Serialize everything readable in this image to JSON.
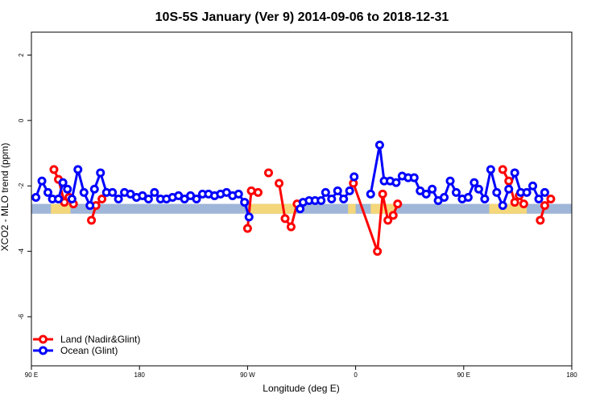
{
  "chart_data": {
    "type": "line",
    "title": "10S-5S January (Ver 9)   2014-09-06 to 2018-12-31",
    "xlabel": "Longitude (deg E)",
    "ylabel": "XCO2 - MLO trend (ppm)",
    "xlim": [
      90,
      450
    ],
    "ylim": [
      -7.5,
      2.7
    ],
    "x_ticks": [
      {
        "value": 90,
        "label": "90 E"
      },
      {
        "value": 162,
        "label": "180"
      },
      {
        "value": 234,
        "label": "90 W"
      },
      {
        "value": 306,
        "label": "0"
      },
      {
        "value": 378,
        "label": "90 E"
      },
      {
        "value": 450,
        "label": "180"
      }
    ],
    "y_ticks": [
      {
        "value": 2,
        "label": "2"
      },
      {
        "value": 0,
        "label": "0"
      },
      {
        "value": -2,
        "label": "-2"
      },
      {
        "value": -4,
        "label": "-4"
      },
      {
        "value": -6,
        "label": "-6"
      }
    ],
    "grid": false,
    "legend_position": "bottom-left",
    "band": {
      "y_low": -2.85,
      "y_high": -2.55,
      "color": "#9fb6d8"
    },
    "land_mask": {
      "color": "#f4d77a",
      "y_low": -2.85,
      "y_high": -2.55,
      "segments": [
        [
          103,
          116
        ],
        [
          236,
          266
        ],
        [
          301,
          306
        ],
        [
          316,
          332
        ],
        [
          395,
          420
        ]
      ]
    },
    "series": [
      {
        "name": "Land (Nadir&Glint)",
        "color": "#ff0000",
        "segments": [
          [
            [
              105,
              -1.5
            ],
            [
              108,
              -1.8
            ],
            [
              112,
              -2.5
            ],
            [
              115,
              -2.35
            ],
            [
              118,
              -2.55
            ]
          ],
          [
            [
              130,
              -3.05
            ],
            [
              133,
              -2.6
            ],
            [
              137,
              -2.4
            ]
          ],
          [
            [
              234,
              -3.3
            ],
            [
              236.5,
              -2.15
            ],
            [
              241,
              -2.2
            ]
          ],
          [
            [
              248,
              -1.6
            ]
          ],
          [
            [
              255,
              -1.92
            ],
            [
              259,
              -3.0
            ],
            [
              263,
              -3.25
            ],
            [
              267,
              -2.55
            ]
          ],
          [
            [
              304.5,
              -1.92
            ],
            [
              320.5,
              -4.0
            ],
            [
              324,
              -2.25
            ],
            [
              327.5,
              -3.05
            ],
            [
              331,
              -2.9
            ],
            [
              334,
              -2.55
            ]
          ],
          [
            [
              404,
              -1.5
            ],
            [
              408,
              -1.85
            ],
            [
              412,
              -2.5
            ],
            [
              415,
              -2.3
            ],
            [
              418,
              -2.55
            ]
          ],
          [
            [
              429,
              -3.05
            ],
            [
              432,
              -2.6
            ],
            [
              436,
              -2.4
            ]
          ]
        ]
      },
      {
        "name": "Ocean (Glint)",
        "color": "#0000ff",
        "points": [
          [
            93,
            -2.35
          ],
          [
            97,
            -1.85
          ],
          [
            101,
            -2.2
          ],
          [
            104,
            -2.4
          ],
          [
            108,
            -2.4
          ],
          [
            111,
            -1.9
          ],
          [
            114,
            -2.1
          ],
          [
            117,
            -2.4
          ],
          [
            121,
            -1.5
          ],
          [
            125,
            -2.2
          ],
          [
            129,
            -2.6
          ],
          [
            132,
            -2.1
          ],
          [
            136,
            -1.6
          ],
          [
            140,
            -2.2
          ],
          [
            144,
            -2.2
          ],
          [
            148,
            -2.4
          ],
          [
            152,
            -2.2
          ],
          [
            156,
            -2.25
          ],
          [
            160,
            -2.35
          ],
          [
            164,
            -2.3
          ],
          [
            168,
            -2.4
          ],
          [
            172,
            -2.2
          ],
          [
            176,
            -2.4
          ],
          [
            180,
            -2.4
          ],
          [
            184,
            -2.35
          ],
          [
            188,
            -2.3
          ],
          [
            192,
            -2.4
          ],
          [
            196,
            -2.3
          ],
          [
            200,
            -2.4
          ],
          [
            204,
            -2.25
          ],
          [
            208,
            -2.25
          ],
          [
            212,
            -2.3
          ],
          [
            216,
            -2.25
          ],
          [
            220,
            -2.2
          ],
          [
            224,
            -2.3
          ],
          [
            228,
            -2.25
          ],
          [
            232,
            -2.5
          ],
          [
            235,
            -2.95
          ],
          null,
          [
            269,
            -2.7
          ],
          [
            271,
            -2.5
          ],
          [
            275,
            -2.45
          ],
          [
            279,
            -2.45
          ],
          [
            283,
            -2.45
          ],
          [
            286,
            -2.2
          ],
          [
            290,
            -2.4
          ],
          [
            294,
            -2.15
          ],
          [
            298,
            -2.4
          ],
          [
            302,
            -2.15
          ],
          [
            305,
            -1.72
          ],
          null,
          [
            316,
            -2.25
          ],
          [
            322,
            -0.75
          ],
          [
            325,
            -1.85
          ],
          [
            329,
            -1.85
          ],
          [
            333,
            -1.9
          ],
          [
            337,
            -1.7
          ],
          [
            341,
            -1.75
          ],
          [
            345,
            -1.75
          ],
          [
            349,
            -2.15
          ],
          [
            353,
            -2.25
          ],
          [
            357,
            -2.1
          ],
          [
            361,
            -2.45
          ],
          [
            365,
            -2.35
          ],
          [
            369,
            -1.85
          ],
          [
            373,
            -2.2
          ],
          [
            377,
            -2.4
          ],
          [
            381,
            -2.35
          ],
          [
            385,
            -1.9
          ],
          [
            388,
            -2.1
          ],
          [
            392,
            -2.4
          ],
          [
            396,
            -1.5
          ],
          [
            400,
            -2.2
          ],
          [
            404,
            -2.6
          ],
          [
            408,
            -2.1
          ],
          [
            412,
            -1.6
          ],
          [
            416,
            -2.2
          ],
          [
            420,
            -2.2
          ],
          [
            424,
            -2.0
          ],
          [
            428,
            -2.4
          ],
          [
            432,
            -2.2
          ]
        ]
      }
    ]
  }
}
